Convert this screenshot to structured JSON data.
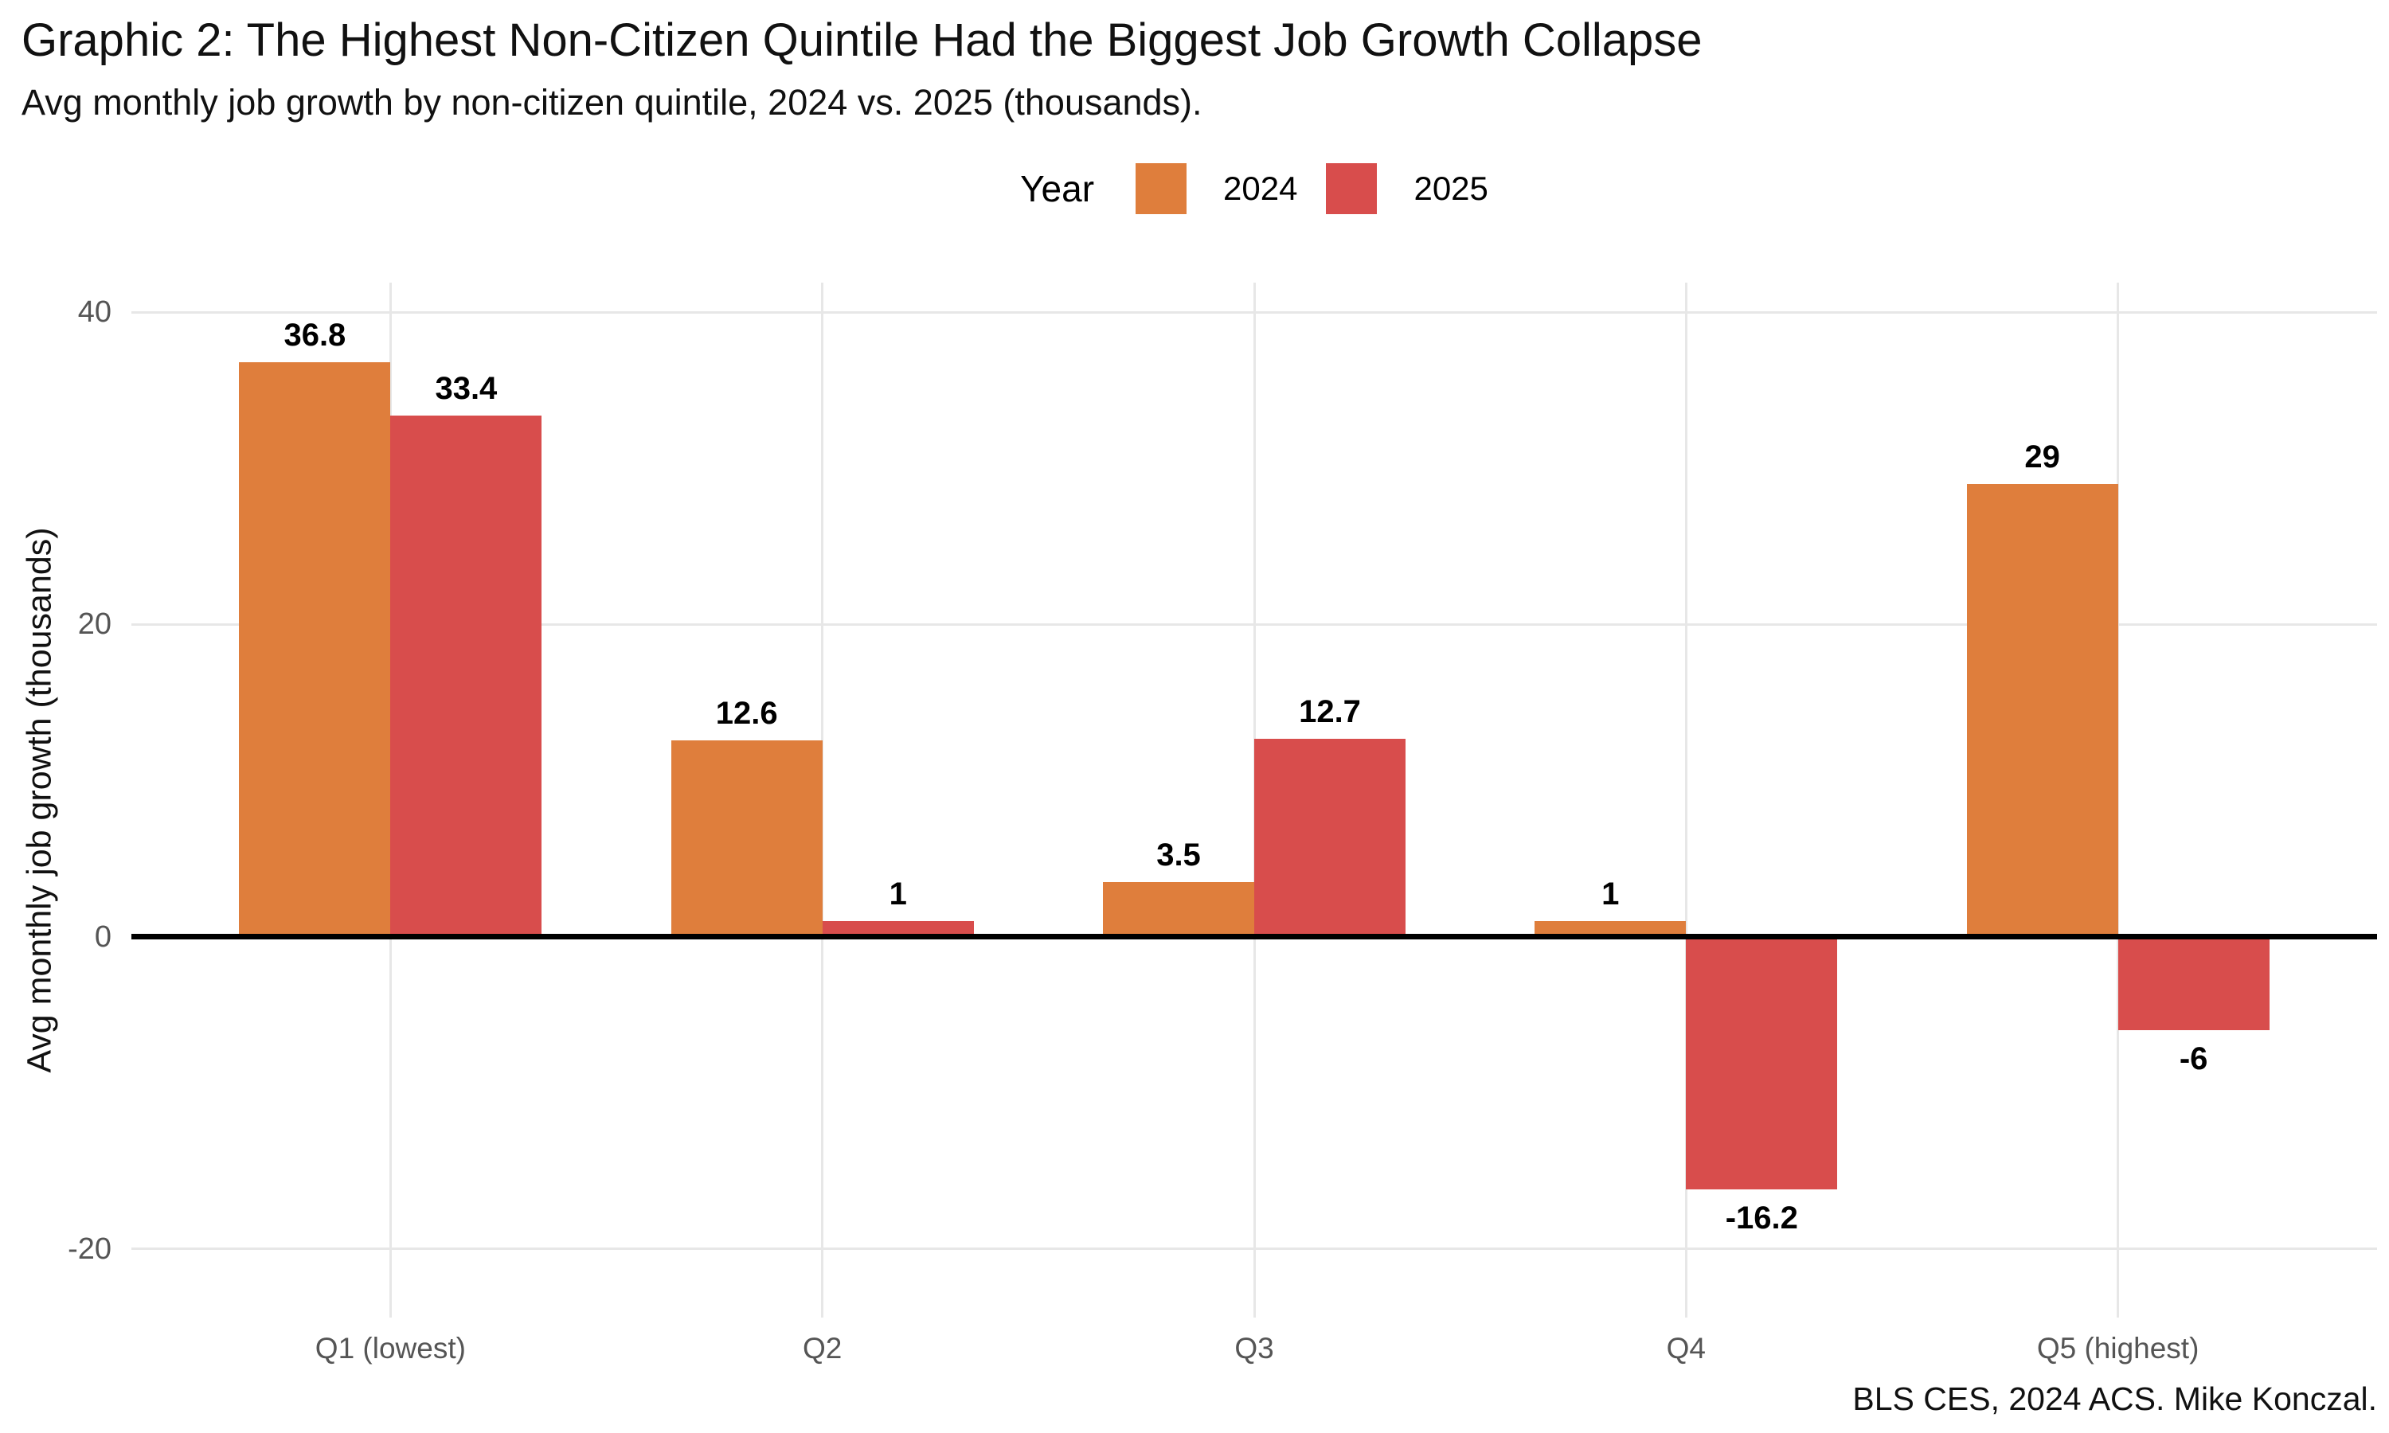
{
  "header": {
    "title": "Graphic 2: The Highest Non-Citizen Quintile Had the Biggest Job Growth Collapse",
    "subtitle": "Avg monthly job growth by non-citizen quintile, 2024 vs. 2025 (thousands)."
  },
  "legend": {
    "title": "Year",
    "items": [
      {
        "label": "2024",
        "color": "#DF7E3C"
      },
      {
        "label": "2025",
        "color": "#D84D4C"
      }
    ]
  },
  "chart_data": {
    "type": "bar",
    "categories": [
      "Q1 (lowest)",
      "Q2",
      "Q3",
      "Q4",
      "Q5 (highest)"
    ],
    "series": [
      {
        "name": "2024",
        "color": "#DF7E3C",
        "values": [
          36.8,
          12.6,
          3.5,
          1,
          29
        ]
      },
      {
        "name": "2025",
        "color": "#D84D4C",
        "values": [
          33.4,
          1,
          12.7,
          -16.2,
          -6
        ]
      }
    ],
    "title": "Graphic 2: The Highest Non-Citizen Quintile Had the Biggest Job Growth Collapse",
    "xlabel": "",
    "ylabel": "Avg monthly job growth (thousands)",
    "yticks": [
      -20,
      0,
      20,
      40
    ],
    "ylim": [
      -24.4,
      41.9
    ],
    "grid": {
      "horizontal": true,
      "vertical": true,
      "color": "#E7E7E7"
    },
    "zero_line_color": "#000000",
    "axis_text_color": "#555555",
    "value_label_style": "bold, above positive bars, below negative bars",
    "legend_position": "top-center"
  },
  "caption": "BLS CES, 2024 ACS. Mike Konczal."
}
